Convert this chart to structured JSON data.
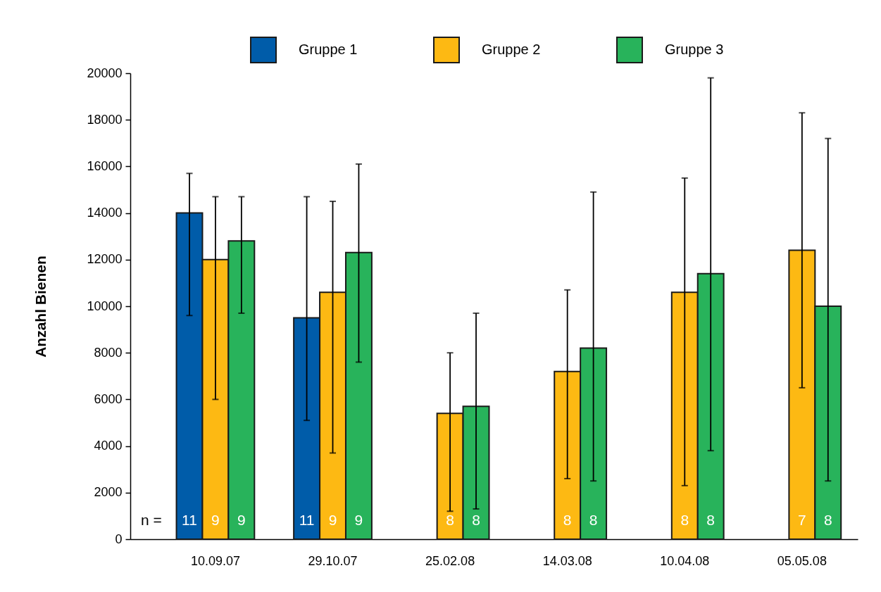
{
  "chart_data": {
    "type": "bar",
    "ylabel": "Anzahl Bienen",
    "categories": [
      "10.09.07",
      "29.10.07",
      "25.02.08",
      "14.03.08",
      "10.04.08",
      "05.05.08"
    ],
    "series": [
      {
        "name": "Gruppe 1",
        "color": "#005ca9",
        "values": [
          14000,
          9500,
          null,
          null,
          null,
          null
        ],
        "errors": [
          [
            9600,
            15700
          ],
          [
            5100,
            14700
          ],
          null,
          null,
          null,
          null
        ]
      },
      {
        "name": "Gruppe 2",
        "color": "#fdb913",
        "values": [
          12000,
          10600,
          5400,
          7200,
          10600,
          12400
        ],
        "errors": [
          [
            6000,
            14700
          ],
          [
            3700,
            14500
          ],
          [
            1200,
            8000
          ],
          [
            2600,
            10700
          ],
          [
            2300,
            15500
          ],
          [
            6500,
            18300
          ]
        ]
      },
      {
        "name": "Gruppe 3",
        "color": "#28b35b",
        "values": [
          12800,
          12300,
          5700,
          8200,
          11400,
          10000
        ],
        "errors": [
          [
            9700,
            14700
          ],
          [
            7600,
            16100
          ],
          [
            1300,
            9700
          ],
          [
            2500,
            14900
          ],
          [
            3800,
            19800
          ],
          [
            2500,
            17200
          ]
        ]
      }
    ],
    "ylim": [
      0,
      20000
    ],
    "yticks": [
      0,
      2000,
      4000,
      6000,
      8000,
      10000,
      12000,
      14000,
      16000,
      18000,
      20000
    ],
    "legend": "top",
    "annotations": [
      "n =",
      "11",
      "9",
      "9",
      "11",
      "9",
      "9",
      "8",
      "8",
      "8",
      "8",
      "8",
      "8",
      "7",
      "8"
    ]
  }
}
